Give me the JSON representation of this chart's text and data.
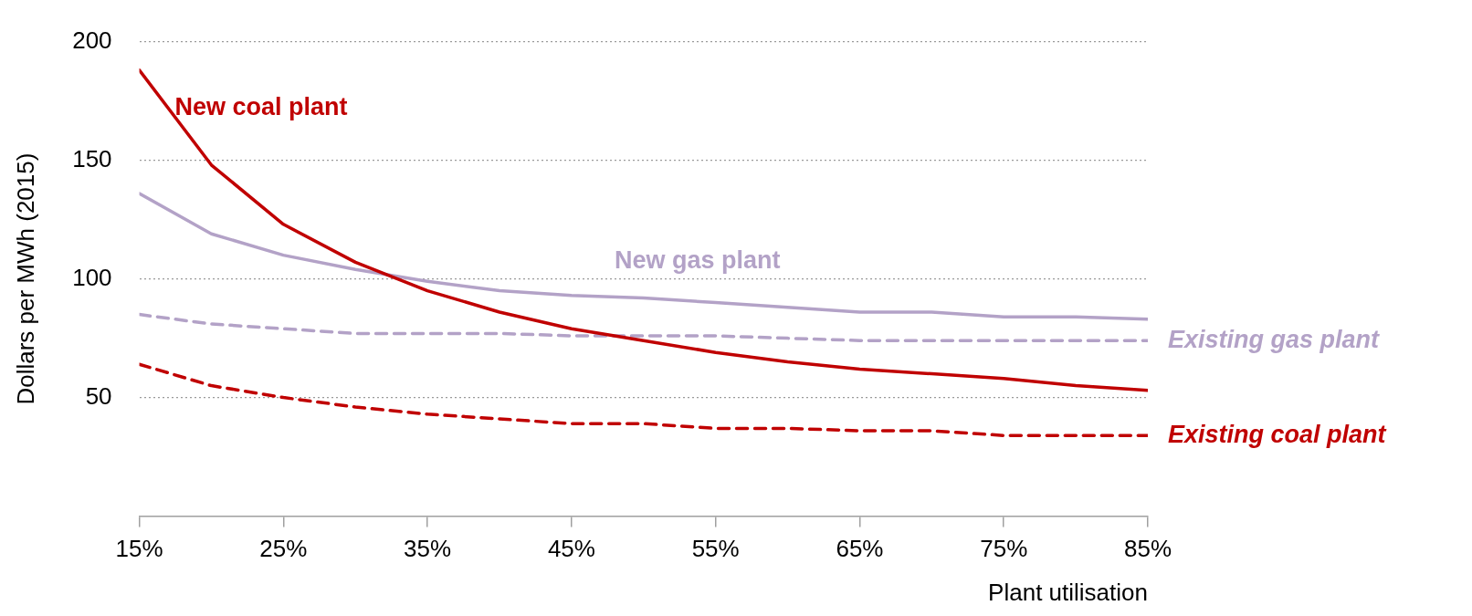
{
  "chart_data": {
    "type": "line",
    "xlabel": "Plant utilisation",
    "ylabel": "Dollars per MWh (2015)",
    "x": [
      15,
      20,
      25,
      30,
      35,
      40,
      45,
      50,
      55,
      60,
      65,
      70,
      75,
      80,
      85
    ],
    "xlim": [
      15,
      85
    ],
    "xticks": [
      {
        "value": 15,
        "label": "15%"
      },
      {
        "value": 25,
        "label": "25%"
      },
      {
        "value": 35,
        "label": "35%"
      },
      {
        "value": 45,
        "label": "45%"
      },
      {
        "value": 55,
        "label": "55%"
      },
      {
        "value": 65,
        "label": "65%"
      },
      {
        "value": 75,
        "label": "75%"
      },
      {
        "value": 85,
        "label": "85%"
      }
    ],
    "ylim": [
      0,
      200
    ],
    "yticks": [
      50,
      100,
      150,
      200
    ],
    "grid": "y",
    "legend": false,
    "marker": "none",
    "series": [
      {
        "name": "New coal plant",
        "color": "#c00000",
        "line_style": "solid",
        "values": [
          188,
          148,
          123,
          107,
          95,
          86,
          79,
          74,
          69,
          65,
          62,
          60,
          58,
          55,
          53
        ]
      },
      {
        "name": "New gas plant",
        "color": "#b3a2c7",
        "line_style": "solid",
        "values": [
          136,
          119,
          110,
          104,
          99,
          95,
          93,
          92,
          90,
          88,
          86,
          86,
          84,
          84,
          83
        ]
      },
      {
        "name": "Existing gas plant",
        "color": "#b3a2c7",
        "line_style": "dashed",
        "values": [
          85,
          81,
          79,
          77,
          77,
          77,
          76,
          76,
          76,
          75,
          74,
          74,
          74,
          74,
          74
        ]
      },
      {
        "name": "Existing coal plant",
        "color": "#c00000",
        "line_style": "dashed",
        "values": [
          64,
          55,
          50,
          46,
          43,
          41,
          39,
          39,
          37,
          37,
          36,
          36,
          34,
          34,
          34
        ]
      }
    ]
  }
}
